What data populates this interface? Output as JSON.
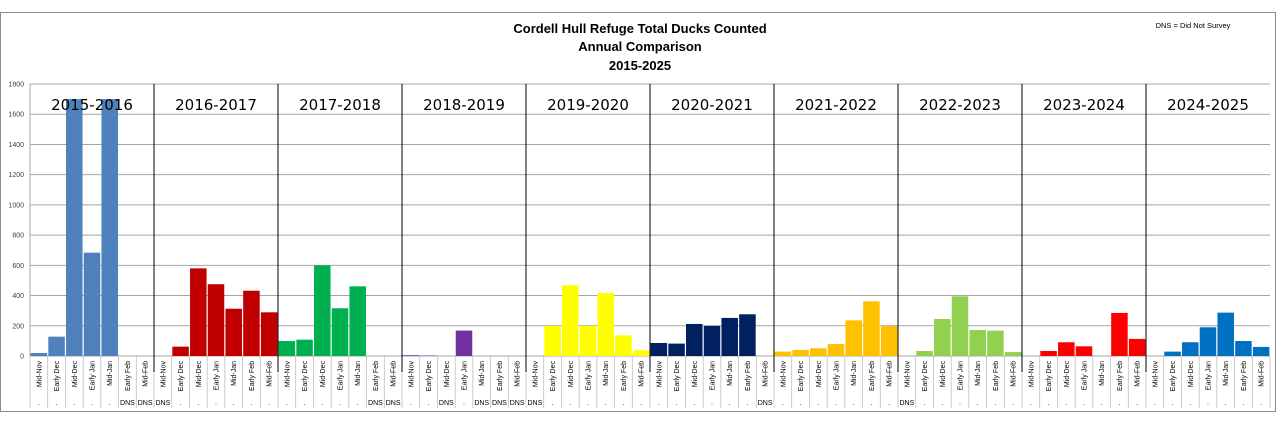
{
  "chart_data": {
    "type": "bar",
    "title": "Cordell Hull Refuge Total Ducks Counted",
    "subtitle": "Annual Comparison",
    "period": "2015-2025",
    "note": "DNS = Did Not Survey",
    "ylim": [
      0,
      1800
    ],
    "yticks": [
      0,
      200,
      400,
      600,
      800,
      1000,
      1200,
      1400,
      1600,
      1800
    ],
    "grid": true,
    "categories": [
      "Mid-Nov",
      "Early Dec",
      "Mid-Dec",
      "Early Jan",
      "Mid-Jan",
      "Early Feb",
      "Mid-Feb"
    ],
    "dns_label": "DNS",
    "dot_label": ".",
    "series": [
      {
        "name": "2015-2016",
        "color": "#4f81bd",
        "values": [
          20,
          128,
          1700,
          684,
          1700,
          null,
          null
        ],
        "dns": [
          false,
          false,
          false,
          false,
          false,
          true,
          true
        ]
      },
      {
        "name": "2016-2017",
        "color": "#c00000",
        "values": [
          null,
          62,
          580,
          475,
          313,
          432,
          289
        ],
        "dns": [
          true,
          false,
          false,
          false,
          false,
          false,
          false
        ]
      },
      {
        "name": "2017-2018",
        "color": "#00b050",
        "values": [
          99,
          108,
          600,
          316,
          461,
          null,
          null
        ],
        "dns": [
          false,
          false,
          false,
          false,
          false,
          true,
          true
        ]
      },
      {
        "name": "2018-2019",
        "color": "#7030a0",
        "values": [
          5,
          3,
          null,
          168,
          null,
          null,
          null
        ],
        "dns": [
          false,
          false,
          true,
          false,
          true,
          true,
          true
        ]
      },
      {
        "name": "2019-2020",
        "color": "#ffff00",
        "values": [
          null,
          199,
          468,
          199,
          417,
          137,
          38
        ],
        "dns": [
          true,
          false,
          false,
          false,
          false,
          false,
          false
        ]
      },
      {
        "name": "2020-2021",
        "color": "#002060",
        "values": [
          86,
          82,
          212,
          199,
          252,
          276,
          null
        ],
        "dns": [
          false,
          false,
          false,
          false,
          false,
          false,
          true
        ]
      },
      {
        "name": "2021-2022",
        "color": "#ffc000",
        "values": [
          29,
          40,
          51,
          79,
          236,
          362,
          197
        ],
        "dns": [
          false,
          false,
          false,
          false,
          false,
          false,
          false
        ]
      },
      {
        "name": "2022-2023",
        "color": "#92d050",
        "values": [
          null,
          33,
          245,
          395,
          172,
          168,
          26
        ],
        "dns": [
          true,
          false,
          false,
          false,
          false,
          false,
          false
        ]
      },
      {
        "name": "2023-2024",
        "color": "#ff0000",
        "values": [
          0,
          33,
          91,
          64,
          0,
          285,
          113
        ],
        "dns": [
          false,
          false,
          false,
          false,
          false,
          false,
          false
        ]
      },
      {
        "name": "2024-2025",
        "color": "#0070c0",
        "values": [
          0,
          29,
          91,
          190,
          287,
          99,
          60
        ],
        "dns": [
          false,
          false,
          false,
          false,
          false,
          false,
          false
        ]
      }
    ]
  }
}
